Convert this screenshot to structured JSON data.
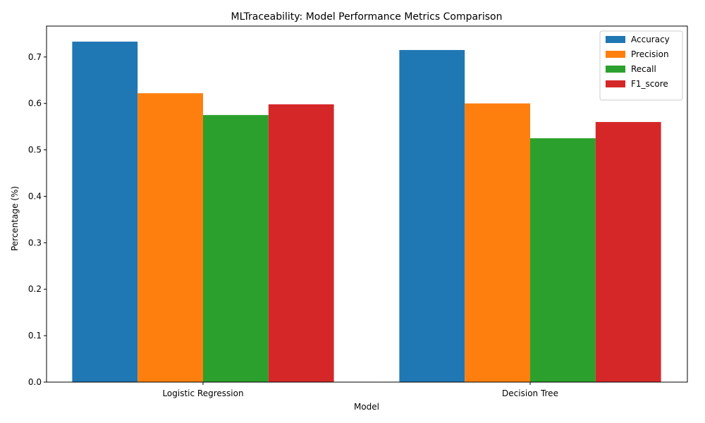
{
  "chart_data": {
    "type": "bar",
    "title": "MLTraceability: Model Performance Metrics Comparison",
    "xlabel": "Model",
    "ylabel": "Percentage (%)",
    "categories": [
      "Logistic Regression",
      "Decision Tree"
    ],
    "series": [
      {
        "name": "Accuracy",
        "values": [
          0.733,
          0.715
        ],
        "color": "#1f77b4"
      },
      {
        "name": "Precision",
        "values": [
          0.622,
          0.6
        ],
        "color": "#ff7f0e"
      },
      {
        "name": "Recall",
        "values": [
          0.575,
          0.525
        ],
        "color": "#2ca02c"
      },
      {
        "name": "F1_score",
        "values": [
          0.598,
          0.56
        ],
        "color": "#d62728"
      }
    ],
    "ylim": [
      0,
      0.7665
    ],
    "yticks": [
      "0.0",
      "0.1",
      "0.2",
      "0.3",
      "0.4",
      "0.5",
      "0.6",
      "0.7"
    ],
    "grid": false,
    "legend_position": "top-right"
  }
}
